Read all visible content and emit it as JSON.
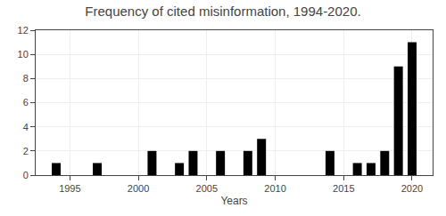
{
  "chart_data": {
    "type": "bar",
    "title": "Frequency of cited misinformation, 1994-2020.",
    "xlabel": "Years",
    "x": [
      1994,
      1995,
      1996,
      1997,
      1998,
      1999,
      2000,
      2001,
      2002,
      2003,
      2004,
      2005,
      2006,
      2007,
      2008,
      2009,
      2010,
      2011,
      2012,
      2013,
      2014,
      2015,
      2016,
      2017,
      2018,
      2019,
      2020
    ],
    "values": [
      1,
      0,
      0,
      1,
      0,
      0,
      0,
      2,
      0,
      1,
      2,
      0,
      2,
      0,
      2,
      3,
      0,
      0,
      0,
      0,
      2,
      0,
      1,
      1,
      2,
      9,
      11
    ],
    "color": "#000000",
    "xlim": [
      1992.5,
      2021.5
    ],
    "xticks": [
      1995,
      2000,
      2005,
      2010,
      2015,
      2020
    ],
    "ylim": [
      0,
      12
    ],
    "yticks": [
      0,
      2,
      4,
      6,
      8,
      10,
      12
    ],
    "grid": true
  }
}
